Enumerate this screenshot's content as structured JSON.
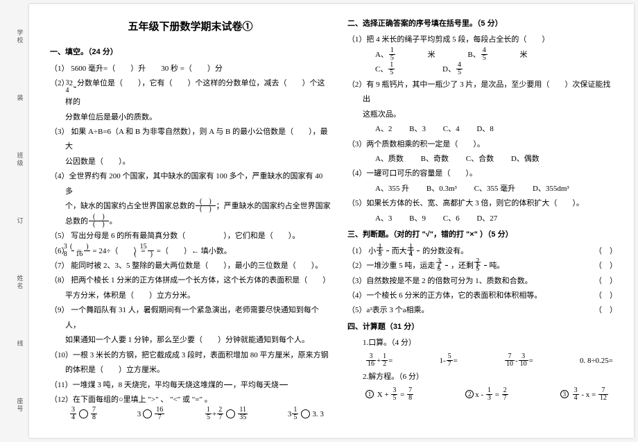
{
  "title": "五年级下册数学期末试卷①",
  "binding": {
    "labels": [
      "学校",
      "班级",
      "姓名",
      "座号"
    ],
    "marks": [
      "装",
      "订",
      "线"
    ]
  },
  "s1": {
    "head": "一、填空。（24 分）",
    "q1": "（1） 5600 毫升=（　　）升　　30 秒 =（　　）分",
    "q2a": "（2）2",
    "q2b": "分数单位是（　　），它有（　　）个这样的分数单位，减去（　　）个这样的",
    "q2c": "分数单位后是最小的质数。",
    "q3a": "（3） 如果 A÷B=6（A 和 B 为非零自然数），则 A 与 B 的最小公倍数是（　　），最大",
    "q3b": "公因数是（　　）。",
    "q4a": "（4）全世界约有 200 个国家，其中缺水的国家有 100 多个，严重缺水的国家有 40 多",
    "q4b": "个，缺水的国家约占全世界国家总数的",
    "q4c": "；严重缺水的国家约占全世界国家",
    "q4d": "总数的",
    "q5": "（5） 写出分母是 6 的所有最简真分数（　　　　　），它们和是（　　）。",
    "q6a": "（6）",
    "q6b": "= 24÷（　　）=",
    "q6c": "=（　　）← 填小数。",
    "q7": "（7） 能同时被 2、3、5 整除的最大两位数是（　　），最小的三位数是（　　）。",
    "q8a": "（8） 把两个棱长 1 分米的正方体拼成一个长方体，这个长方体的表面积是（　　）",
    "q8b": "平方分米，体积是（　　）立方分米。",
    "q9a": "（9） 一个舞蹈队有 31 人，暑假期间有一个紧急演出，老师需要尽快通知到每个人，",
    "q9b": "如果通知一个人要 1 分钟，那么至少要（　　）分钟就能通知到每个人。",
    "q10a": "（10）一根 3 米长的方钢，把它截成成 3 段时，表面积增加 80 平方厘米，原来方钢",
    "q10b": "的体积是（　　）立方厘米。",
    "q11a": "（11）一堆煤 3 吨，8 天烧完，平均每天烧这堆煤的",
    "q11b": "，平均每天烧",
    "q12a": "（12）在下面每组的○里填上 \">\" 、 \"<\" 或 \"=\" 。",
    "q12o": [
      "3",
      "16",
      "1",
      "2",
      "11",
      "3"
    ]
  },
  "s2": {
    "head": "二、选择正确答案的序号填在括号里。（5 分）",
    "q1": "（1）把 4 米长的绳子平均剪成 5 段，每段占全长的（　　）",
    "q1o": {
      "a": "米",
      "b": "米"
    },
    "q2a": "（2）有 9 瓶钙片，其中一瓶少了 3 片，是次品，至少要用（　　）次保证能找出",
    "q2b": "这瓶次品。",
    "q2o": {
      "a": "A、2",
      "b": "B、3",
      "c": "C、4",
      "d": "D、8"
    },
    "q3": "（3）两个质数相乘的积一定是（　　）。",
    "q3o": {
      "a": "A、质数",
      "b": "B、奇数",
      "c": "C、合数",
      "d": "D、偶数"
    },
    "q4": "（4）一罐可口可乐的容量是（　　）。",
    "q4o": {
      "a": "A、355 升",
      "b": "B、0.3m³",
      "c": "C、355 毫升",
      "d": "D、355dm³"
    },
    "q5": "（5）如果长方体的长、宽、高都扩大 3 倍，则它的体积扩大（　　）。",
    "q5o": {
      "a": "A、3",
      "b": "B、9",
      "c": "C、6",
      "d": "D、27"
    }
  },
  "s3": {
    "head": "三、判断题。（对的打 \"√\"，错的打 \"×\" ）（5 分）",
    "q1a": "（1） 小于",
    "q1b": "而大于",
    "q1c": "的分数没有。",
    "q2a": "（2）一堆沙重 5 吨，运走了",
    "q2b": "，还剩下",
    "q2c": "吨。",
    "q3": "（3）自然数按是不是 2 的倍数可分为 1、质数和合数。",
    "q4": "（4）一个棱长 6 分米的正方体，它的表面积和体积相等。",
    "q5": "（5）a²表示 3 个a相乘。"
  },
  "s4": {
    "head": "四、计算题（31 分）",
    "p1": "1.口算。（4 分）",
    "p1o4": "0. 8÷0.25=",
    "p2": "2.解方程。（6 分）"
  }
}
